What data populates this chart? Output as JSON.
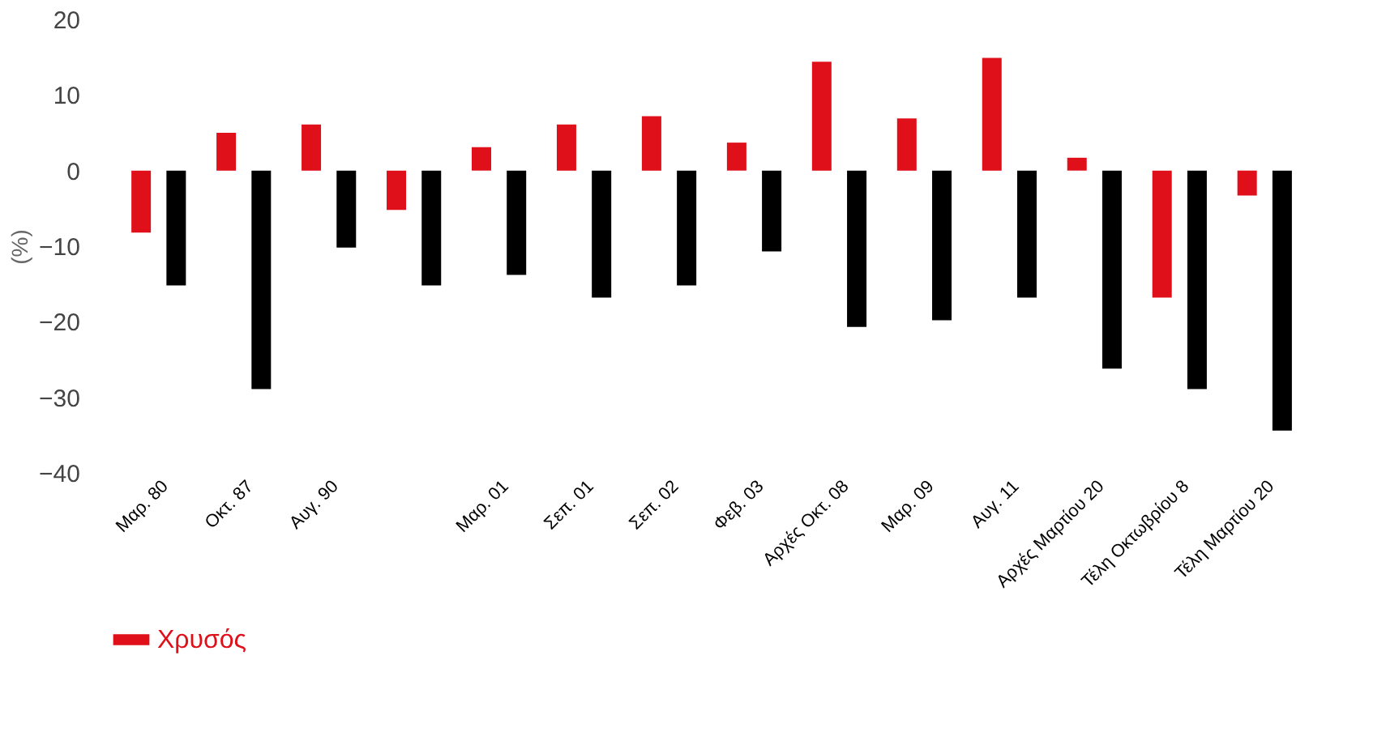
{
  "chart_data": {
    "type": "bar",
    "ylabel": "(%)",
    "categories": [
      "Μαρ. 80",
      "Οκτ. 87",
      "Αυγ. 90",
      null,
      "Μαρ. 01",
      "Σεπ. 01",
      "Σεπ. 02",
      "Φεβ. 03",
      "Αρχές Οκτ. 08",
      "Μαρ. 09",
      "Αυγ. 11",
      "Αρχές Μαρτίου 20",
      "Τέλη Οκτωβρίου 8",
      "Τέλη Μαρτίου 20"
    ],
    "series": [
      {
        "name": "Χρυσός",
        "color": "#e0101a",
        "values": [
          -8.2,
          5.0,
          6.1,
          -5.2,
          3.1,
          6.1,
          7.2,
          3.7,
          14.4,
          6.9,
          14.9,
          1.7,
          -16.8,
          -3.3
        ]
      },
      {
        "color": "#000000",
        "values": [
          -15.2,
          -28.9,
          -10.2,
          -15.2,
          -13.8,
          -16.8,
          -15.2,
          -10.7,
          -20.7,
          -19.8,
          -16.8,
          -26.2,
          -28.9,
          -34.4
        ]
      }
    ],
    "ylim": [
      -40,
      20
    ],
    "yticks": [
      -40,
      -30,
      -20,
      -10,
      0,
      10,
      20
    ],
    "grid": false,
    "legend": "bottom"
  }
}
